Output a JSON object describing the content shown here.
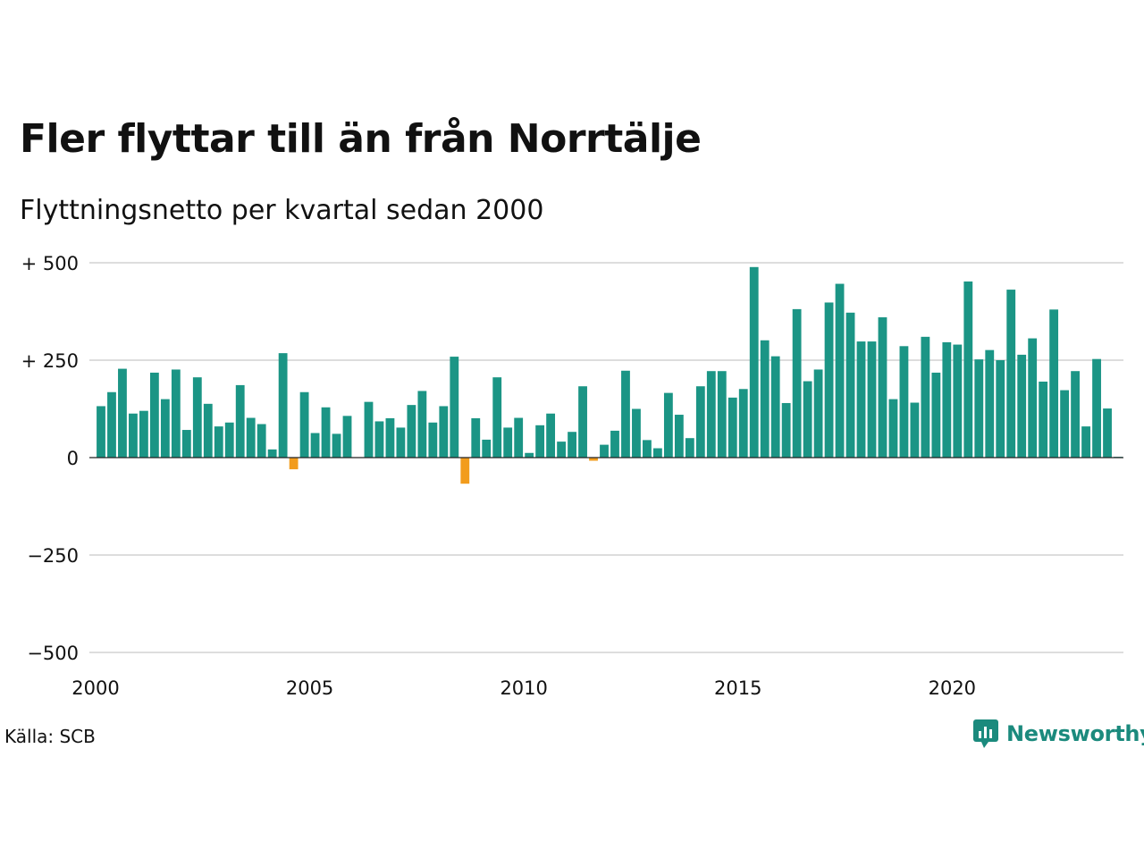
{
  "title": "Fler flyttar till än från Norrtälje",
  "subtitle": "Flyttningsnetto per kvartal sedan 2000",
  "source": "Källa: SCB",
  "brand": "Newsworthy",
  "colors": {
    "positive": "#1b9585",
    "negative": "#f29c1c",
    "grid": "#dddddd",
    "baseline": "#222222",
    "brand": "#1b8a7d"
  },
  "icons": {
    "brand_logo": "newsworthy-logo-icon"
  },
  "chart_data": {
    "type": "bar",
    "title": "Fler flyttar till än från Norrtälje",
    "subtitle": "Flyttningsnetto per kvartal sedan 2000",
    "xlabel": "",
    "ylabel": "",
    "ylim": [
      -500,
      500
    ],
    "grid": true,
    "x_start_year": 2000,
    "x_ticks": [
      "2000",
      "2005",
      "2010",
      "2015",
      "2020"
    ],
    "y_ticks": [
      {
        "value": 500,
        "label": "+ 500"
      },
      {
        "value": 250,
        "label": "+ 250"
      },
      {
        "value": 0,
        "label": "0"
      },
      {
        "value": -250,
        "label": "−250"
      },
      {
        "value": -500,
        "label": "−500"
      }
    ],
    "categories": [
      "2000K1",
      "2000K2",
      "2000K3",
      "2000K4",
      "2001K1",
      "2001K2",
      "2001K3",
      "2001K4",
      "2002K1",
      "2002K2",
      "2002K3",
      "2002K4",
      "2003K1",
      "2003K2",
      "2003K3",
      "2003K4",
      "2004K1",
      "2004K2",
      "2004K3",
      "2004K4",
      "2005K1",
      "2005K2",
      "2005K3",
      "2005K4",
      "2006K1",
      "2006K2",
      "2006K3",
      "2006K4",
      "2007K1",
      "2007K2",
      "2007K3",
      "2007K4",
      "2008K1",
      "2008K2",
      "2008K3",
      "2008K4",
      "2009K1",
      "2009K2",
      "2009K3",
      "2009K4",
      "2010K1",
      "2010K2",
      "2010K3",
      "2010K4",
      "2011K1",
      "2011K2",
      "2011K3",
      "2011K4",
      "2012K1",
      "2012K2",
      "2012K3",
      "2012K4",
      "2013K1",
      "2013K2",
      "2013K3",
      "2013K4",
      "2014K1",
      "2014K2",
      "2014K3",
      "2014K4",
      "2015K1",
      "2015K2",
      "2015K3",
      "2015K4",
      "2016K1",
      "2016K2",
      "2016K3",
      "2016K4",
      "2017K1",
      "2017K2",
      "2017K3",
      "2017K4",
      "2018K1",
      "2018K2",
      "2018K3",
      "2018K4",
      "2019K1",
      "2019K2",
      "2019K3",
      "2019K4",
      "2020K1",
      "2020K2",
      "2020K3",
      "2020K4",
      "2021K1",
      "2021K2",
      "2021K3",
      "2021K4",
      "2022K1",
      "2022K2",
      "2022K3",
      "2022K4",
      "2023K1",
      "2023K2",
      "2023K3",
      "2023K4"
    ],
    "values": [
      132,
      168,
      228,
      113,
      120,
      218,
      150,
      226,
      71,
      206,
      138,
      80,
      90,
      186,
      102,
      86,
      21,
      268,
      -30,
      168,
      63,
      129,
      61,
      107,
      0,
      143,
      93,
      101,
      77,
      135,
      171,
      90,
      132,
      259,
      -67,
      101,
      46,
      206,
      77,
      102,
      12,
      83,
      113,
      41,
      66,
      183,
      -8,
      33,
      69,
      223,
      125,
      45,
      24,
      166,
      110,
      50,
      183,
      222,
      222,
      154,
      176,
      489,
      301,
      260,
      140,
      381,
      196,
      226,
      398,
      446,
      372,
      298,
      298,
      360,
      150,
      286,
      141,
      310,
      218,
      296,
      290,
      452,
      252,
      276,
      250,
      431,
      264,
      306,
      195,
      380,
      173,
      222,
      80,
      253,
      126,
      2
    ]
  }
}
